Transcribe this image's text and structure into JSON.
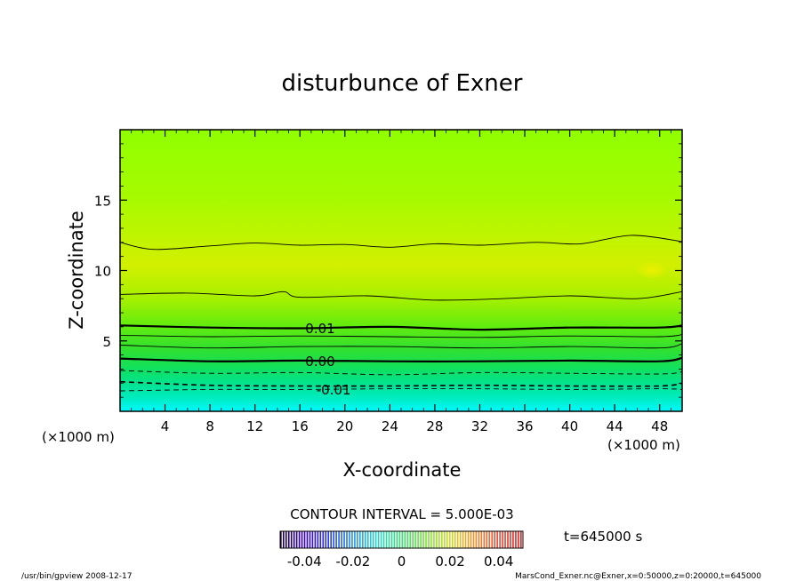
{
  "chart_data": {
    "type": "contour",
    "title": "disturbunce of Exner",
    "xlabel": "X-coordinate",
    "ylabel": "Z-coordinate",
    "x_unit_left": "(×1000 m)",
    "x_unit_right": "(×1000 m)",
    "xlim": [
      0,
      50
    ],
    "ylim": [
      0,
      20
    ],
    "x_ticks": [
      4,
      8,
      12,
      16,
      20,
      24,
      28,
      32,
      36,
      40,
      44,
      48
    ],
    "y_ticks": [
      5,
      10,
      15
    ],
    "contour_interval_text": "CONTOUR INTERVAL = 5.000E-03",
    "contours": [
      {
        "level": -0.01,
        "label": "-0.01",
        "style": "dashed",
        "weight": "thin",
        "label_at_x": 19.0,
        "x": [
          0,
          8,
          16,
          24,
          32,
          40,
          48,
          50
        ],
        "z": [
          1.45,
          1.55,
          1.55,
          1.6,
          1.6,
          1.55,
          1.6,
          1.55
        ]
      },
      {
        "level": -0.005,
        "label": "",
        "style": "dashed",
        "weight": "medium",
        "x": [
          0,
          8,
          16,
          24,
          32,
          40,
          48,
          50
        ],
        "z": [
          2.1,
          1.85,
          1.8,
          1.8,
          1.85,
          1.8,
          1.8,
          2.0
        ]
      },
      {
        "level": -0.0025,
        "label": "",
        "style": "dashed",
        "weight": "thin",
        "x": [
          0,
          8,
          16,
          24,
          32,
          40,
          48,
          50
        ],
        "z": [
          2.9,
          2.7,
          2.75,
          2.6,
          2.75,
          2.7,
          2.65,
          2.8
        ]
      },
      {
        "level": 0.0,
        "label": "0.00",
        "style": "solid",
        "weight": "thick",
        "label_at_x": 17.8,
        "x": [
          0,
          8,
          16,
          24,
          32,
          40,
          48,
          50
        ],
        "z": [
          3.75,
          3.55,
          3.6,
          3.55,
          3.55,
          3.6,
          3.55,
          3.8
        ]
      },
      {
        "level": 0.0025,
        "label": "",
        "style": "solid",
        "weight": "thin",
        "x": [
          0,
          8,
          16,
          24,
          32,
          40,
          48,
          50
        ],
        "z": [
          4.7,
          4.5,
          4.6,
          4.6,
          4.5,
          4.6,
          4.5,
          4.8
        ]
      },
      {
        "level": 0.005,
        "label": "",
        "style": "solid",
        "weight": "thin",
        "x": [
          0,
          8,
          16,
          24,
          32,
          40,
          48,
          50
        ],
        "z": [
          5.4,
          5.3,
          5.35,
          5.3,
          5.25,
          5.35,
          5.3,
          5.45
        ]
      },
      {
        "level": 0.01,
        "label": "0.01",
        "style": "solid",
        "weight": "thick",
        "label_at_x": 17.8,
        "x": [
          0,
          8,
          16,
          24,
          32,
          40,
          48,
          50
        ],
        "z": [
          6.1,
          5.95,
          5.9,
          6.0,
          5.8,
          5.95,
          5.95,
          6.1
        ]
      },
      {
        "level": 0.015,
        "label": "",
        "style": "solid",
        "weight": "thin",
        "x": [
          0,
          6,
          12,
          14.5,
          16,
          22,
          28,
          34,
          40,
          46,
          50
        ],
        "z": [
          8.3,
          8.4,
          8.2,
          8.5,
          8.1,
          8.2,
          7.9,
          8.0,
          8.2,
          8.0,
          8.5
        ]
      },
      {
        "level": 0.02,
        "label": "",
        "style": "solid",
        "weight": "thin",
        "x": [
          0,
          3,
          8,
          12,
          16,
          20,
          24,
          28,
          32,
          37,
          41,
          45.5,
          50
        ],
        "z": [
          12.0,
          11.5,
          11.75,
          11.95,
          11.8,
          11.85,
          11.65,
          11.9,
          11.8,
          12.0,
          11.9,
          12.5,
          12.05
        ]
      }
    ],
    "color_scale": {
      "ticks": [
        "-0.04",
        "-0.02",
        "0",
        "0.02",
        "0.04"
      ],
      "range": [
        -0.05,
        0.05
      ]
    },
    "time_label": "t=645000 s",
    "footer_left": "/usr/bin/gpview   2008-12-17",
    "footer_right": "MarsCond_Exner.nc@Exner,x=0:50000,z=0:20000,t=645000",
    "colors": {
      "bottom": "#00f0ff",
      "low": "#00e090",
      "mid": "#20e040",
      "upper": "#a0ff00",
      "peak": "#d8f000",
      "top": "#99ff00"
    }
  }
}
